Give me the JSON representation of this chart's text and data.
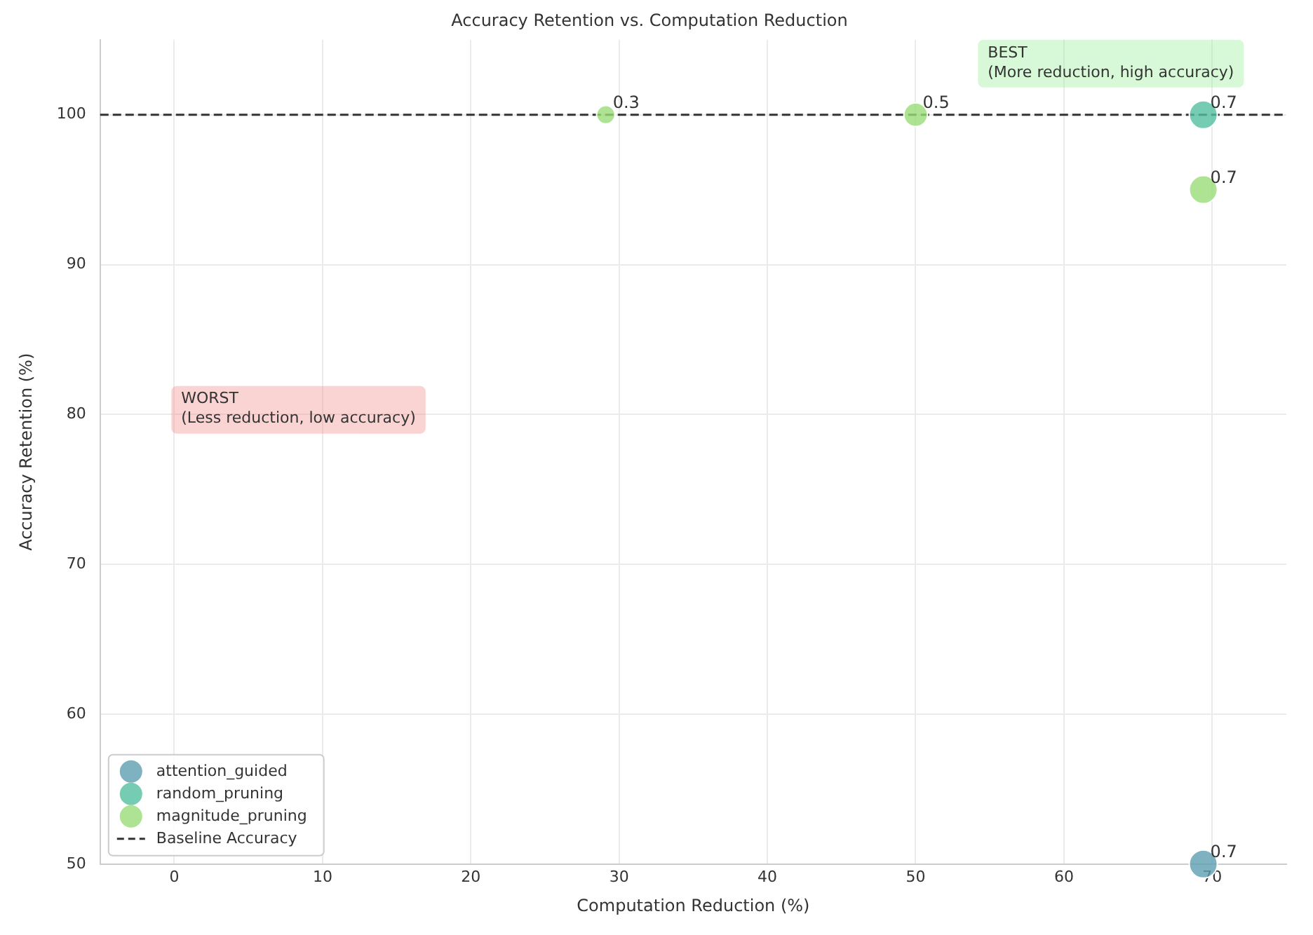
{
  "chart_data": {
    "type": "bubble",
    "title": "Accuracy Retention vs. Computation Reduction",
    "xlabel": "Computation Reduction (%)",
    "ylabel": "Accuracy Retention (%)",
    "series": [
      {
        "name": "attention_guided",
        "color": "#5f9fb0",
        "x": [
          69.4
        ],
        "values": [
          50
        ],
        "sizes": [
          1
        ]
      },
      {
        "name": "random_pruning",
        "color": "#52bfa0",
        "x": [
          69.4
        ],
        "values": [
          100
        ],
        "sizes": [
          1
        ]
      },
      {
        "name": "magnitude_pruning",
        "color": "#98dc78",
        "x": [
          29.1,
          50,
          69.4
        ],
        "values": [
          100,
          100,
          95
        ],
        "sizes": [
          0.43,
          0.71,
          1
        ]
      }
    ],
    "xlim": [
      -5,
      75
    ],
    "xticks": [
      0,
      10,
      20,
      30,
      40,
      50,
      60,
      70
    ],
    "ylim": [
      50,
      105
    ],
    "yticks": [
      50,
      60,
      70,
      80,
      90,
      100
    ],
    "ref_lines": [
      {
        "axis": "y",
        "value": 100,
        "label": "Baseline Accuracy",
        "color": "#333333",
        "line_style": "dashed"
      }
    ],
    "annotations": [
      {
        "text": "0.3",
        "x": 29.1,
        "y": 100
      },
      {
        "text": "0.5",
        "x": 50,
        "y": 100
      },
      {
        "text": "0.7",
        "x": 69.4,
        "y": 100
      },
      {
        "text": "0.7",
        "x": 69.4,
        "y": 95
      },
      {
        "text": "0.7",
        "x": 69.4,
        "y": 50
      },
      "BEST\n(More reduction, high accuracy)",
      "WORST\n(Less reduction, low accuracy)"
    ],
    "grid": true,
    "legend": "bottom left"
  }
}
